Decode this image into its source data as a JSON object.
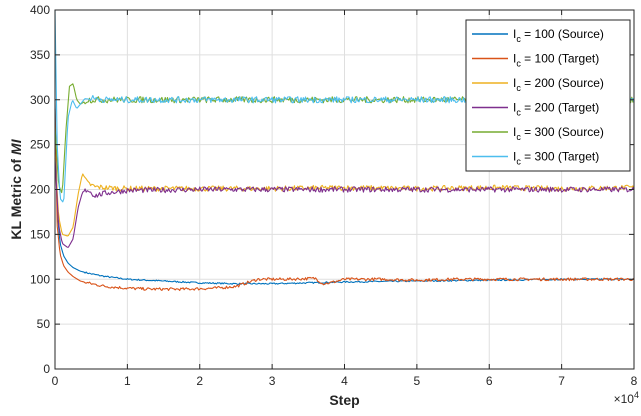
{
  "chart_data": {
    "type": "line",
    "xlabel": "Step",
    "ylabel": "KL Metric of",
    "ylabel_math": "MI",
    "x_multiplier": "×10",
    "x_multiplier_exp": "4",
    "xlim": [
      0,
      80000
    ],
    "ylim": [
      0,
      400
    ],
    "xticks": [
      0,
      10000,
      20000,
      30000,
      40000,
      50000,
      60000,
      70000,
      80000
    ],
    "xtick_labels": [
      "0",
      "1",
      "2",
      "3",
      "4",
      "5",
      "6",
      "7",
      "8"
    ],
    "yticks": [
      0,
      50,
      100,
      150,
      200,
      250,
      300,
      350,
      400
    ],
    "ytick_labels": [
      "0",
      "50",
      "100",
      "150",
      "200",
      "250",
      "300",
      "350",
      "400"
    ],
    "grid": true,
    "legend_position": "top-right",
    "series": [
      {
        "name_prefix": "I",
        "name_sub": "c",
        "name_suffix": " = 100 (Source)",
        "color": "#0072BD",
        "noise": 0.8,
        "x": [
          0,
          300,
          700,
          1200,
          1800,
          2500,
          3500,
          5000,
          7000,
          10000,
          15000,
          20000,
          25000,
          30000,
          35000,
          40000,
          50000,
          60000,
          70000,
          80000
        ],
        "y": [
          300,
          175,
          140,
          126,
          118,
          113,
          109,
          106,
          103,
          100,
          98,
          96,
          95,
          95,
          96,
          97,
          98,
          99,
          100,
          100
        ]
      },
      {
        "name_prefix": "I",
        "name_sub": "c",
        "name_suffix": " = 100 (Target)",
        "color": "#D95319",
        "noise": 1.6,
        "x": [
          0,
          300,
          700,
          1200,
          1800,
          2500,
          3500,
          5000,
          7000,
          10000,
          13000,
          18000,
          22000,
          25000,
          26500,
          28000,
          32000,
          36000,
          37000,
          38000,
          40000,
          45000,
          50000,
          55000,
          60000,
          70000,
          80000
        ],
        "y": [
          290,
          160,
          128,
          115,
          108,
          103,
          98,
          95,
          92,
          90,
          89,
          89,
          90,
          92,
          96,
          100,
          100,
          101,
          95,
          96,
          100,
          100,
          99,
          100,
          100,
          100,
          100
        ]
      },
      {
        "name_prefix": "I",
        "name_sub": "c",
        "name_suffix": " = 200 (Source)",
        "color": "#EDB120",
        "noise": 3,
        "x": [
          0,
          500,
          1000,
          1800,
          2500,
          3200,
          3800,
          4500,
          5500,
          7000,
          10000,
          20000,
          30000,
          40000,
          50000,
          60000,
          70000,
          80000
        ],
        "y": [
          240,
          170,
          150,
          148,
          158,
          195,
          218,
          207,
          203,
          202,
          201,
          201,
          201,
          202,
          201,
          202,
          201,
          202
        ]
      },
      {
        "name_prefix": "I",
        "name_sub": "c",
        "name_suffix": " = 200 (Target)",
        "color": "#7E2F8E",
        "noise": 3,
        "x": [
          0,
          500,
          1000,
          1800,
          2500,
          3200,
          3800,
          4500,
          5500,
          7000,
          10000,
          20000,
          30000,
          40000,
          50000,
          60000,
          70000,
          80000
        ],
        "y": [
          235,
          160,
          140,
          135,
          145,
          180,
          197,
          200,
          193,
          196,
          199,
          200,
          200,
          200,
          200,
          200,
          200,
          200
        ]
      },
      {
        "name_prefix": "I",
        "name_sub": "c",
        "name_suffix": " = 300 (Source)",
        "color": "#77AC30",
        "noise": 3.5,
        "x": [
          0,
          500,
          1000,
          1500,
          2000,
          2500,
          3000,
          3500,
          4500,
          6000,
          10000,
          20000,
          30000,
          40000,
          50000,
          60000,
          70000,
          80000
        ],
        "y": [
          270,
          205,
          195,
          265,
          315,
          318,
          300,
          295,
          300,
          300,
          300,
          300,
          300,
          300,
          300,
          300,
          300,
          300
        ]
      },
      {
        "name_prefix": "I",
        "name_sub": "c",
        "name_suffix": " = 300 (Target)",
        "color": "#4DBEEE",
        "noise": 3.5,
        "x": [
          0,
          300,
          700,
          1200,
          1800,
          2400,
          3000,
          4000,
          5000,
          7000,
          10000,
          20000,
          30000,
          40000,
          50000,
          60000,
          70000,
          80000
        ],
        "y": [
          400,
          250,
          190,
          185,
          280,
          300,
          290,
          300,
          302,
          300,
          300,
          300,
          300,
          300,
          300,
          300,
          300,
          300
        ]
      }
    ]
  }
}
